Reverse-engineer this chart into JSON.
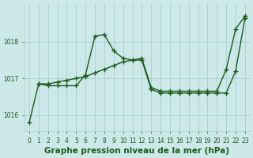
{
  "title": "Graphe pression niveau de la mer (hPa)",
  "background_color": "#cce8e8",
  "line_color": "#1a5c1a",
  "grid_color": "#aacfcf",
  "xlim": [
    -0.5,
    23.5
  ],
  "ylim": [
    1015.55,
    1019.05
  ],
  "yticks": [
    1016,
    1017,
    1018
  ],
  "xticks": [
    0,
    1,
    2,
    3,
    4,
    5,
    6,
    7,
    8,
    9,
    10,
    11,
    12,
    13,
    14,
    15,
    16,
    17,
    18,
    19,
    20,
    21,
    22,
    23
  ],
  "series1_x": [
    0,
    1,
    2,
    3,
    4,
    5,
    6,
    7,
    8,
    9,
    10,
    11,
    12,
    13,
    14,
    15,
    16,
    17,
    18,
    19,
    20,
    21,
    22,
    23
  ],
  "series1_y": [
    1015.8,
    1016.85,
    1016.8,
    1016.8,
    1016.8,
    1016.8,
    1017.1,
    1018.15,
    1018.2,
    1017.75,
    1017.55,
    1017.5,
    1017.5,
    1016.7,
    1016.6,
    1016.6,
    1016.6,
    1016.6,
    1016.6,
    1016.6,
    1016.6,
    1016.6,
    1017.2,
    1018.65
  ],
  "series2_x": [
    1,
    2,
    3,
    4,
    5,
    6,
    7,
    8,
    9,
    10,
    11,
    12,
    13,
    14,
    15,
    16,
    17,
    18,
    19,
    20,
    21,
    22,
    23
  ],
  "series2_y": [
    1016.85,
    1016.85,
    1016.9,
    1016.95,
    1017.0,
    1017.05,
    1017.15,
    1017.25,
    1017.35,
    1017.45,
    1017.5,
    1017.55,
    1016.75,
    1016.65,
    1016.65,
    1016.65,
    1016.65,
    1016.65,
    1016.65,
    1016.65,
    1017.25,
    1018.35,
    1018.7
  ],
  "marker": "+",
  "marker_size": 5,
  "marker_edge_width": 1.0,
  "line_width": 1.0,
  "tick_fontsize": 5.5,
  "title_fontsize": 7.5
}
